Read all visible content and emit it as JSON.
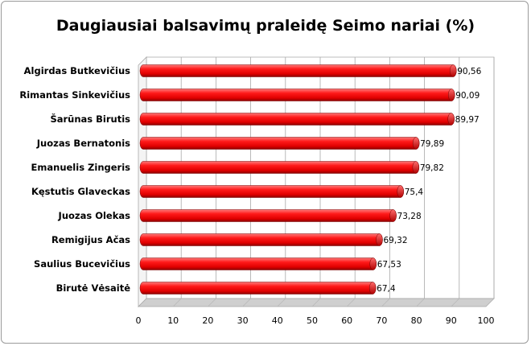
{
  "chart_data": {
    "type": "bar",
    "orientation": "horizontal",
    "title": "Daugiausiai balsavimų praleidę Seimo nariai (%)",
    "categories": [
      "Algirdas Butkevičius",
      "Rimantas Sinkevičius",
      "Šarūnas Birutis",
      "Juozas Bernatonis",
      "Emanuelis Zingeris",
      "Kęstutis Glaveckas",
      "Juozas Olekas",
      "Remigijus Ačas",
      "Saulius Bucevičius",
      "Birutė Vėsaitė"
    ],
    "values": [
      90.56,
      90.09,
      89.97,
      79.89,
      79.82,
      75.4,
      73.28,
      69.32,
      67.53,
      67.4
    ],
    "data_labels": [
      "90,56",
      "90,09",
      "89,97",
      "79,89",
      "79,82",
      "75,4",
      "73,28",
      "69,32",
      "67,53",
      "67,4"
    ],
    "xlim": [
      0,
      100
    ],
    "x_ticks": [
      "0",
      "10",
      "20",
      "30",
      "40",
      "50",
      "60",
      "70",
      "80",
      "90",
      "100"
    ],
    "bar_color": "#ee1111",
    "grid": true,
    "legend": "none"
  }
}
